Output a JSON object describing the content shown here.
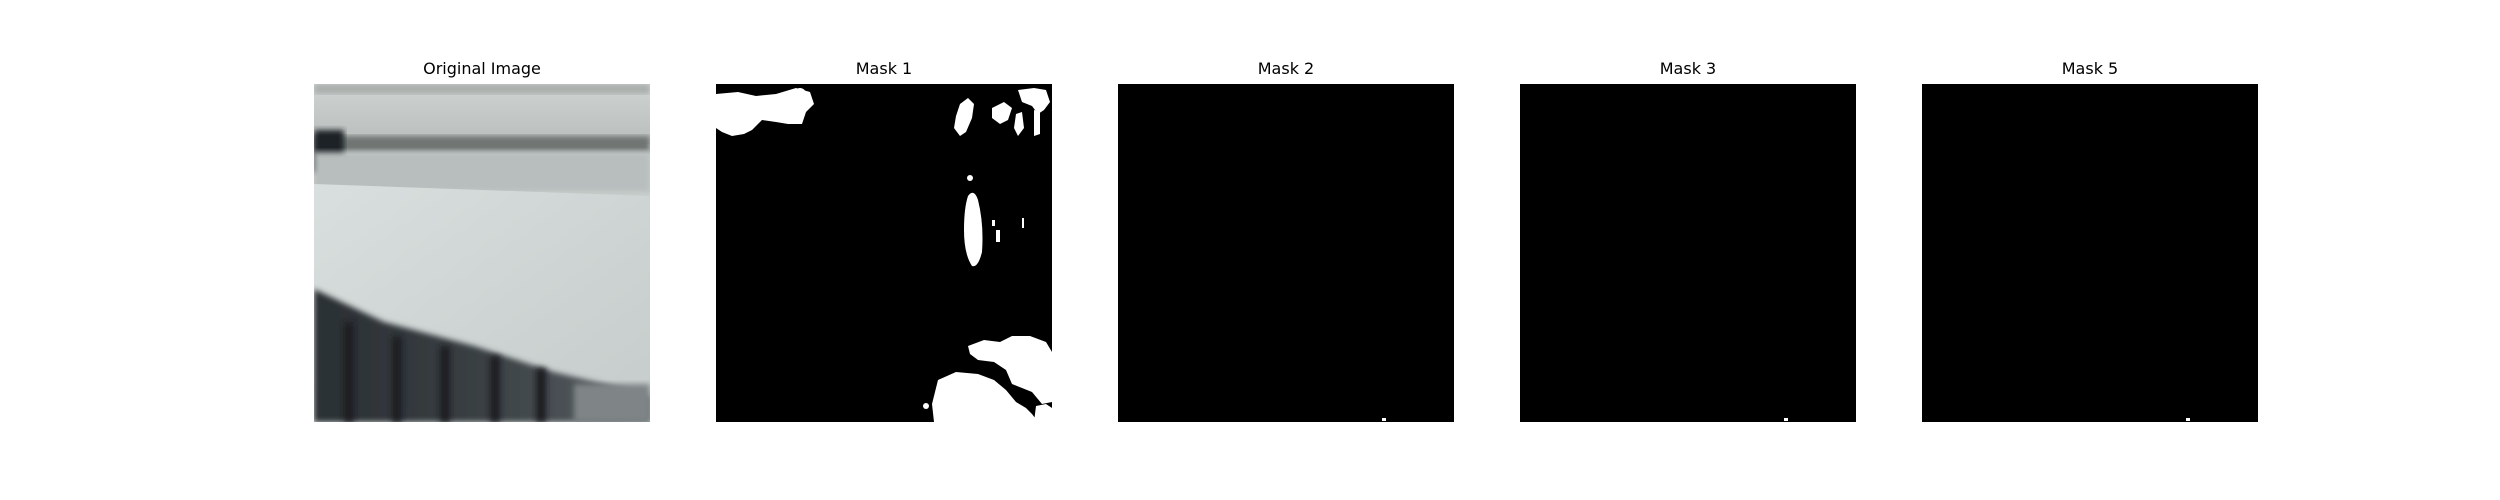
{
  "panels": [
    {
      "title": "Original Image",
      "kind": "photo"
    },
    {
      "title": "Mask 1",
      "kind": "mask"
    },
    {
      "title": "Mask 2",
      "kind": "mask"
    },
    {
      "title": "Mask 3",
      "kind": "mask"
    },
    {
      "title": "Mask 5",
      "kind": "mask"
    }
  ],
  "colors": {
    "background": "#ffffff",
    "mask_bg": "#000000",
    "mask_fg": "#ffffff"
  }
}
